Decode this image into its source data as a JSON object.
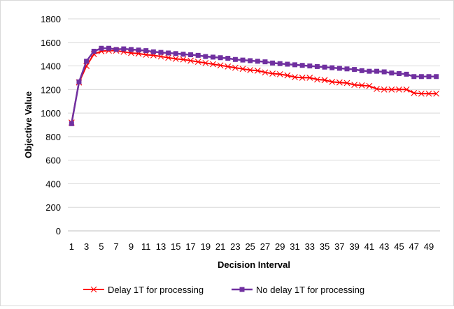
{
  "chart_data": {
    "type": "line",
    "title": "",
    "xlabel": "Decision Interval",
    "ylabel": "Objective Value",
    "ylim": [
      0,
      1800
    ],
    "yticks": [
      0,
      200,
      400,
      600,
      800,
      1000,
      1200,
      1400,
      1600,
      1800
    ],
    "xlim": [
      1,
      50
    ],
    "xtick_labels": [
      "1",
      "3",
      "5",
      "7",
      "9",
      "11",
      "13",
      "15",
      "17",
      "19",
      "21",
      "23",
      "25",
      "27",
      "29",
      "31",
      "33",
      "35",
      "37",
      "39",
      "41",
      "43",
      "45",
      "47",
      "49"
    ],
    "grid": "horizontal",
    "legend_position": "bottom",
    "x": [
      1,
      2,
      3,
      4,
      5,
      6,
      7,
      8,
      9,
      10,
      11,
      12,
      13,
      14,
      15,
      16,
      17,
      18,
      19,
      20,
      21,
      22,
      23,
      24,
      25,
      26,
      27,
      28,
      29,
      30,
      31,
      32,
      33,
      34,
      35,
      36,
      37,
      38,
      39,
      40,
      41,
      42,
      43,
      44,
      45,
      46,
      47,
      48,
      49,
      50
    ],
    "series": [
      {
        "name": "Delay 1T for processing",
        "color": "#ff0000",
        "marker": "x",
        "values": [
          920,
          1260,
          1400,
          1500,
          1525,
          1530,
          1530,
          1520,
          1510,
          1505,
          1495,
          1490,
          1480,
          1470,
          1460,
          1455,
          1445,
          1435,
          1425,
          1415,
          1405,
          1395,
          1385,
          1375,
          1365,
          1360,
          1345,
          1335,
          1330,
          1320,
          1305,
          1300,
          1300,
          1285,
          1280,
          1265,
          1260,
          1255,
          1240,
          1235,
          1230,
          1205,
          1200,
          1200,
          1200,
          1200,
          1170,
          1165,
          1165,
          1165
        ]
      },
      {
        "name": "No delay 1T for processing",
        "color": "#7030a0",
        "marker": "square",
        "values": [
          910,
          1265,
          1440,
          1525,
          1550,
          1550,
          1540,
          1545,
          1540,
          1535,
          1530,
          1520,
          1515,
          1510,
          1505,
          1500,
          1495,
          1490,
          1480,
          1475,
          1470,
          1465,
          1455,
          1450,
          1445,
          1440,
          1435,
          1425,
          1420,
          1415,
          1410,
          1405,
          1400,
          1395,
          1390,
          1385,
          1380,
          1375,
          1370,
          1360,
          1355,
          1355,
          1350,
          1340,
          1335,
          1330,
          1310,
          1310,
          1310,
          1310
        ]
      }
    ]
  }
}
